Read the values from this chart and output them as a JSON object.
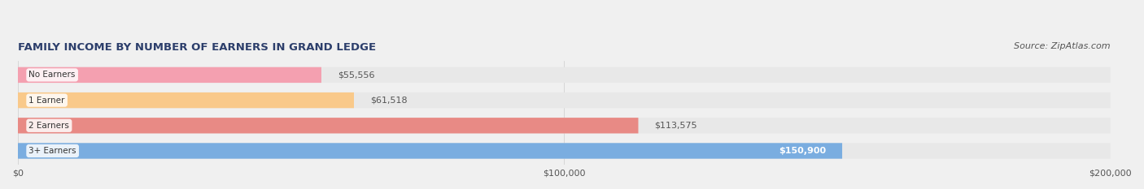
{
  "title": "FAMILY INCOME BY NUMBER OF EARNERS IN GRAND LEDGE",
  "source": "Source: ZipAtlas.com",
  "categories": [
    "No Earners",
    "1 Earner",
    "2 Earners",
    "3+ Earners"
  ],
  "values": [
    55556,
    61518,
    113575,
    150900
  ],
  "labels": [
    "$55,556",
    "$61,518",
    "$113,575",
    "$150,900"
  ],
  "bar_colors": [
    "#f4a0b0",
    "#f9c98a",
    "#e88a85",
    "#7aade0"
  ],
  "label_colors": [
    "#555555",
    "#555555",
    "#555555",
    "#ffffff"
  ],
  "xlim": [
    0,
    200000
  ],
  "xticks": [
    0,
    100000,
    200000
  ],
  "xticklabels": [
    "$0",
    "$100,000",
    "$200,000"
  ],
  "background_color": "#f0f0f0",
  "bar_background": "#e8e8e8",
  "title_color": "#2c3e6b",
  "source_color": "#555555"
}
